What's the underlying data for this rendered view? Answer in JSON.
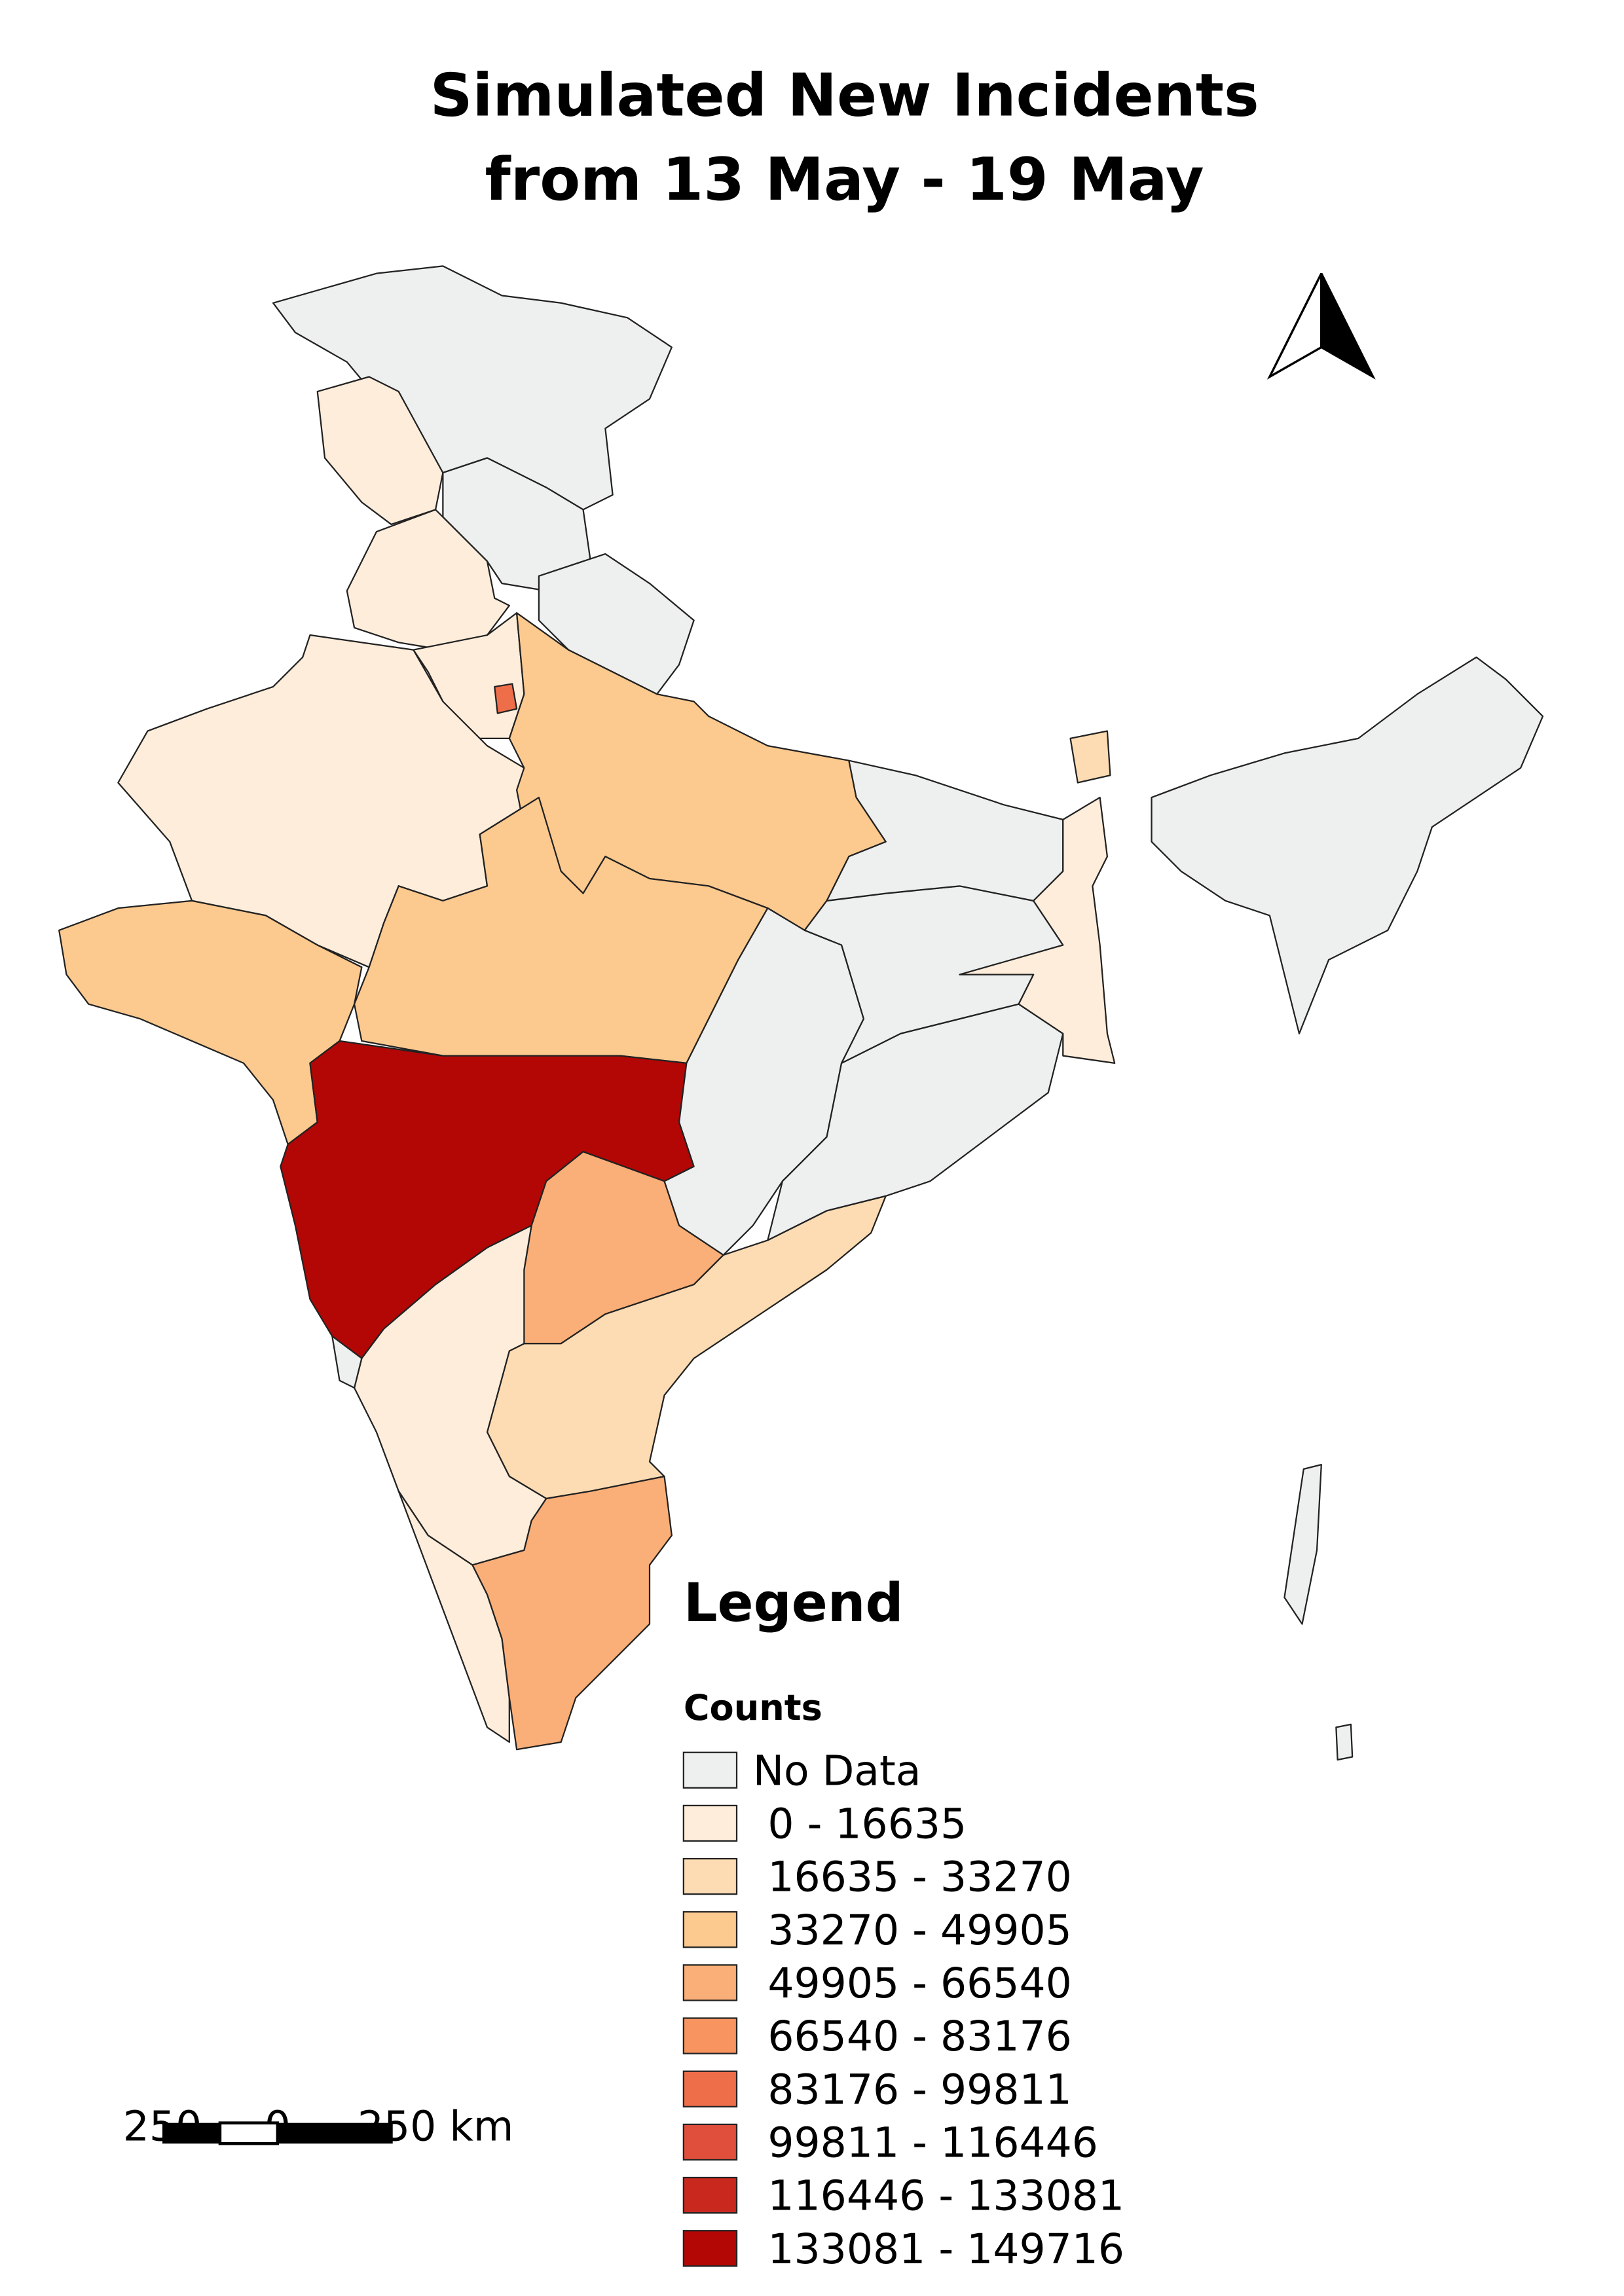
{
  "title": [
    "Simulated New Incidents",
    "from 13 May - 19 May"
  ],
  "legend": {
    "title": "Legend",
    "subtitle": "Counts",
    "items": [
      {
        "label": "No Data",
        "color": "#eef0f0"
      },
      {
        "label": "0 - 16635",
        "color": "#feeddb"
      },
      {
        "label": "16635 - 33270",
        "color": "#fddcb4"
      },
      {
        "label": "33270 - 49905",
        "color": "#fcc98f"
      },
      {
        "label": "49905 - 66540",
        "color": "#fbaf78"
      },
      {
        "label": "66540 - 83176",
        "color": "#f89460"
      },
      {
        "label": "83176 - 99811",
        "color": "#ef6e4a"
      },
      {
        "label": "99811 - 116446",
        "color": "#e04f3b"
      },
      {
        "label": "116446 - 133081",
        "color": "#c9281f"
      },
      {
        "label": "133081 - 149716",
        "color": "#b30706"
      }
    ]
  },
  "scale_bar": {
    "labels": [
      "250",
      "0",
      "250 km"
    ]
  }
}
